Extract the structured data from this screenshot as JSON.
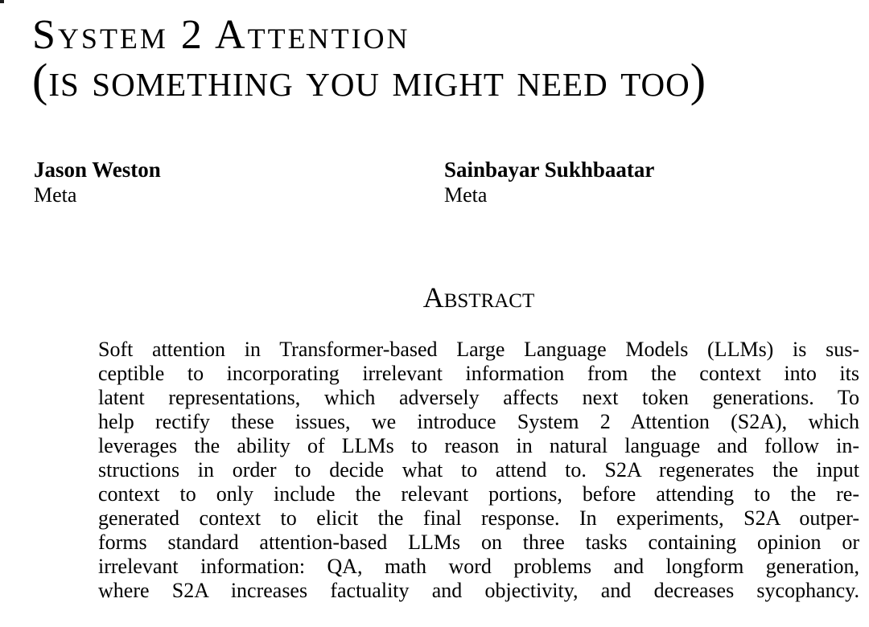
{
  "page": {
    "background": "#ffffff",
    "text_color": "#000000"
  },
  "title": {
    "line1": "System 2 Attention",
    "line2": "(is something you might need too)"
  },
  "authors": [
    {
      "name": "Jason Weston",
      "affiliation": "Meta"
    },
    {
      "name": "Sainbayar Sukhbaatar",
      "affiliation": "Meta"
    }
  ],
  "abstract": {
    "heading": "Abstract",
    "lines": [
      "Soft attention in Transformer-based Large Language Models (LLMs) is sus-",
      "ceptible to incorporating irrelevant information from the context into its",
      "latent representations, which adversely affects next token generations. To",
      "help rectify these issues, we introduce System 2 Attention (S2A), which",
      "leverages the ability of LLMs to reason in natural language and follow in-",
      "structions in order to decide what to attend to. S2A regenerates the input",
      "context to only include the relevant portions, before attending to the re-",
      "generated context to elicit the final response. In experiments, S2A outper-",
      "forms standard attention-based LLMs on three tasks containing opinion or",
      "irrelevant information: QA, math word problems and longform generation,",
      "where S2A increases factuality and objectivity, and decreases sycophancy."
    ]
  }
}
